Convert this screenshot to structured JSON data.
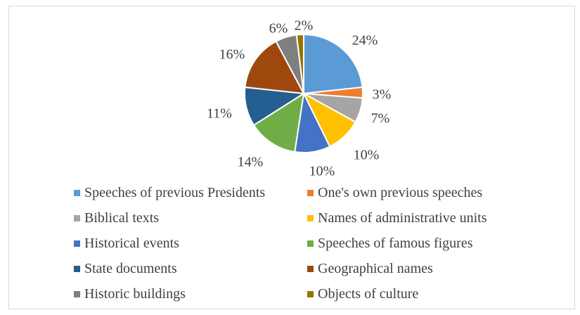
{
  "chart_data": {
    "type": "pie",
    "title": "",
    "slices": [
      {
        "name": "Speeches of previous Presidents",
        "value": 24,
        "label": "24%",
        "color": "#5b9bd5"
      },
      {
        "name": "One's own previous speeches",
        "value": 3,
        "label": "3%",
        "color": "#ed7d31"
      },
      {
        "name": "Biblical texts",
        "value": 7,
        "label": "7%",
        "color": "#a5a5a5"
      },
      {
        "name": "Names of administrative units",
        "value": 10,
        "label": "10%",
        "color": "#ffc000"
      },
      {
        "name": "Historical events",
        "value": 10,
        "label": "10%",
        "color": "#4472c4"
      },
      {
        "name": "Speeches of famous figures",
        "value": 14,
        "label": "14%",
        "color": "#70ad47"
      },
      {
        "name": "State documents",
        "value": 11,
        "label": "11%",
        "color": "#255e91"
      },
      {
        "name": "Geographical names",
        "value": 16,
        "label": "16%",
        "color": "#9e480e"
      },
      {
        "name": "Historic buildings",
        "value": 6,
        "label": "6%",
        "color": "#7f7f7f"
      },
      {
        "name": "Objects of culture",
        "value": 2,
        "label": "2%",
        "color": "#997300"
      }
    ],
    "legend_position": "bottom"
  }
}
